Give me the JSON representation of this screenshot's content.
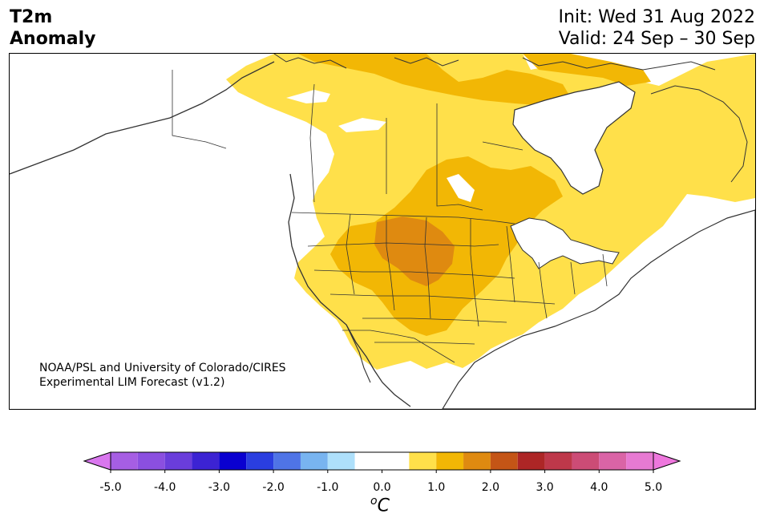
{
  "title": {
    "line1": "T2m",
    "line2": "Anomaly"
  },
  "run_info": {
    "init": "Init: Wed 31 Aug 2022",
    "valid": "Valid: 24 Sep – 30 Sep"
  },
  "credit": {
    "line1": "NOAA/PSL and University of Colorado/CIRES",
    "line2": "Experimental LIM Forecast (v1.2)"
  },
  "colorbar": {
    "unit_symbol": "o",
    "unit_letter": "C",
    "tick_labels": [
      "-5.0",
      "-4.0",
      "-3.0",
      "-2.0",
      "-1.0",
      "0.0",
      "1.0",
      "2.0",
      "3.0",
      "4.0",
      "5.0"
    ],
    "under_color": "#d977ee",
    "over_color": "#ee77dd",
    "bins": [
      {
        "from": -5.0,
        "to": -4.5,
        "color": "#a65ee3"
      },
      {
        "from": -4.5,
        "to": -4.0,
        "color": "#8b4fe0"
      },
      {
        "from": -4.0,
        "to": -3.5,
        "color": "#6a3ddb"
      },
      {
        "from": -3.5,
        "to": -3.0,
        "color": "#3c23d3"
      },
      {
        "from": -3.0,
        "to": -2.5,
        "color": "#0a00d0"
      },
      {
        "from": -2.5,
        "to": -2.0,
        "color": "#2a3ee0"
      },
      {
        "from": -2.0,
        "to": -1.5,
        "color": "#4f74e6"
      },
      {
        "from": -1.5,
        "to": -1.0,
        "color": "#78b4f0"
      },
      {
        "from": -1.0,
        "to": -0.5,
        "color": "#aee0fb"
      },
      {
        "from": -0.5,
        "to": 0.5,
        "color": "#ffffff"
      },
      {
        "from": 0.5,
        "to": 1.0,
        "color": "#ffe04a"
      },
      {
        "from": 1.0,
        "to": 1.5,
        "color": "#f2b705"
      },
      {
        "from": 1.5,
        "to": 2.0,
        "color": "#df8a10"
      },
      {
        "from": 2.0,
        "to": 2.5,
        "color": "#c45516"
      },
      {
        "from": 2.5,
        "to": 3.0,
        "color": "#ad2626"
      },
      {
        "from": 3.0,
        "to": 3.5,
        "color": "#be384a"
      },
      {
        "from": 3.5,
        "to": 4.0,
        "color": "#cc4c76"
      },
      {
        "from": 4.0,
        "to": 4.5,
        "color": "#da64a6"
      },
      {
        "from": 4.5,
        "to": 5.0,
        "color": "#e77ad2"
      }
    ]
  },
  "map_colors": {
    "band_0p5_1": "#ffe04a",
    "band_1_1p5": "#f2b705",
    "band_1p5_2": "#df8a10",
    "coast": "#333333",
    "borders": "#333333"
  }
}
